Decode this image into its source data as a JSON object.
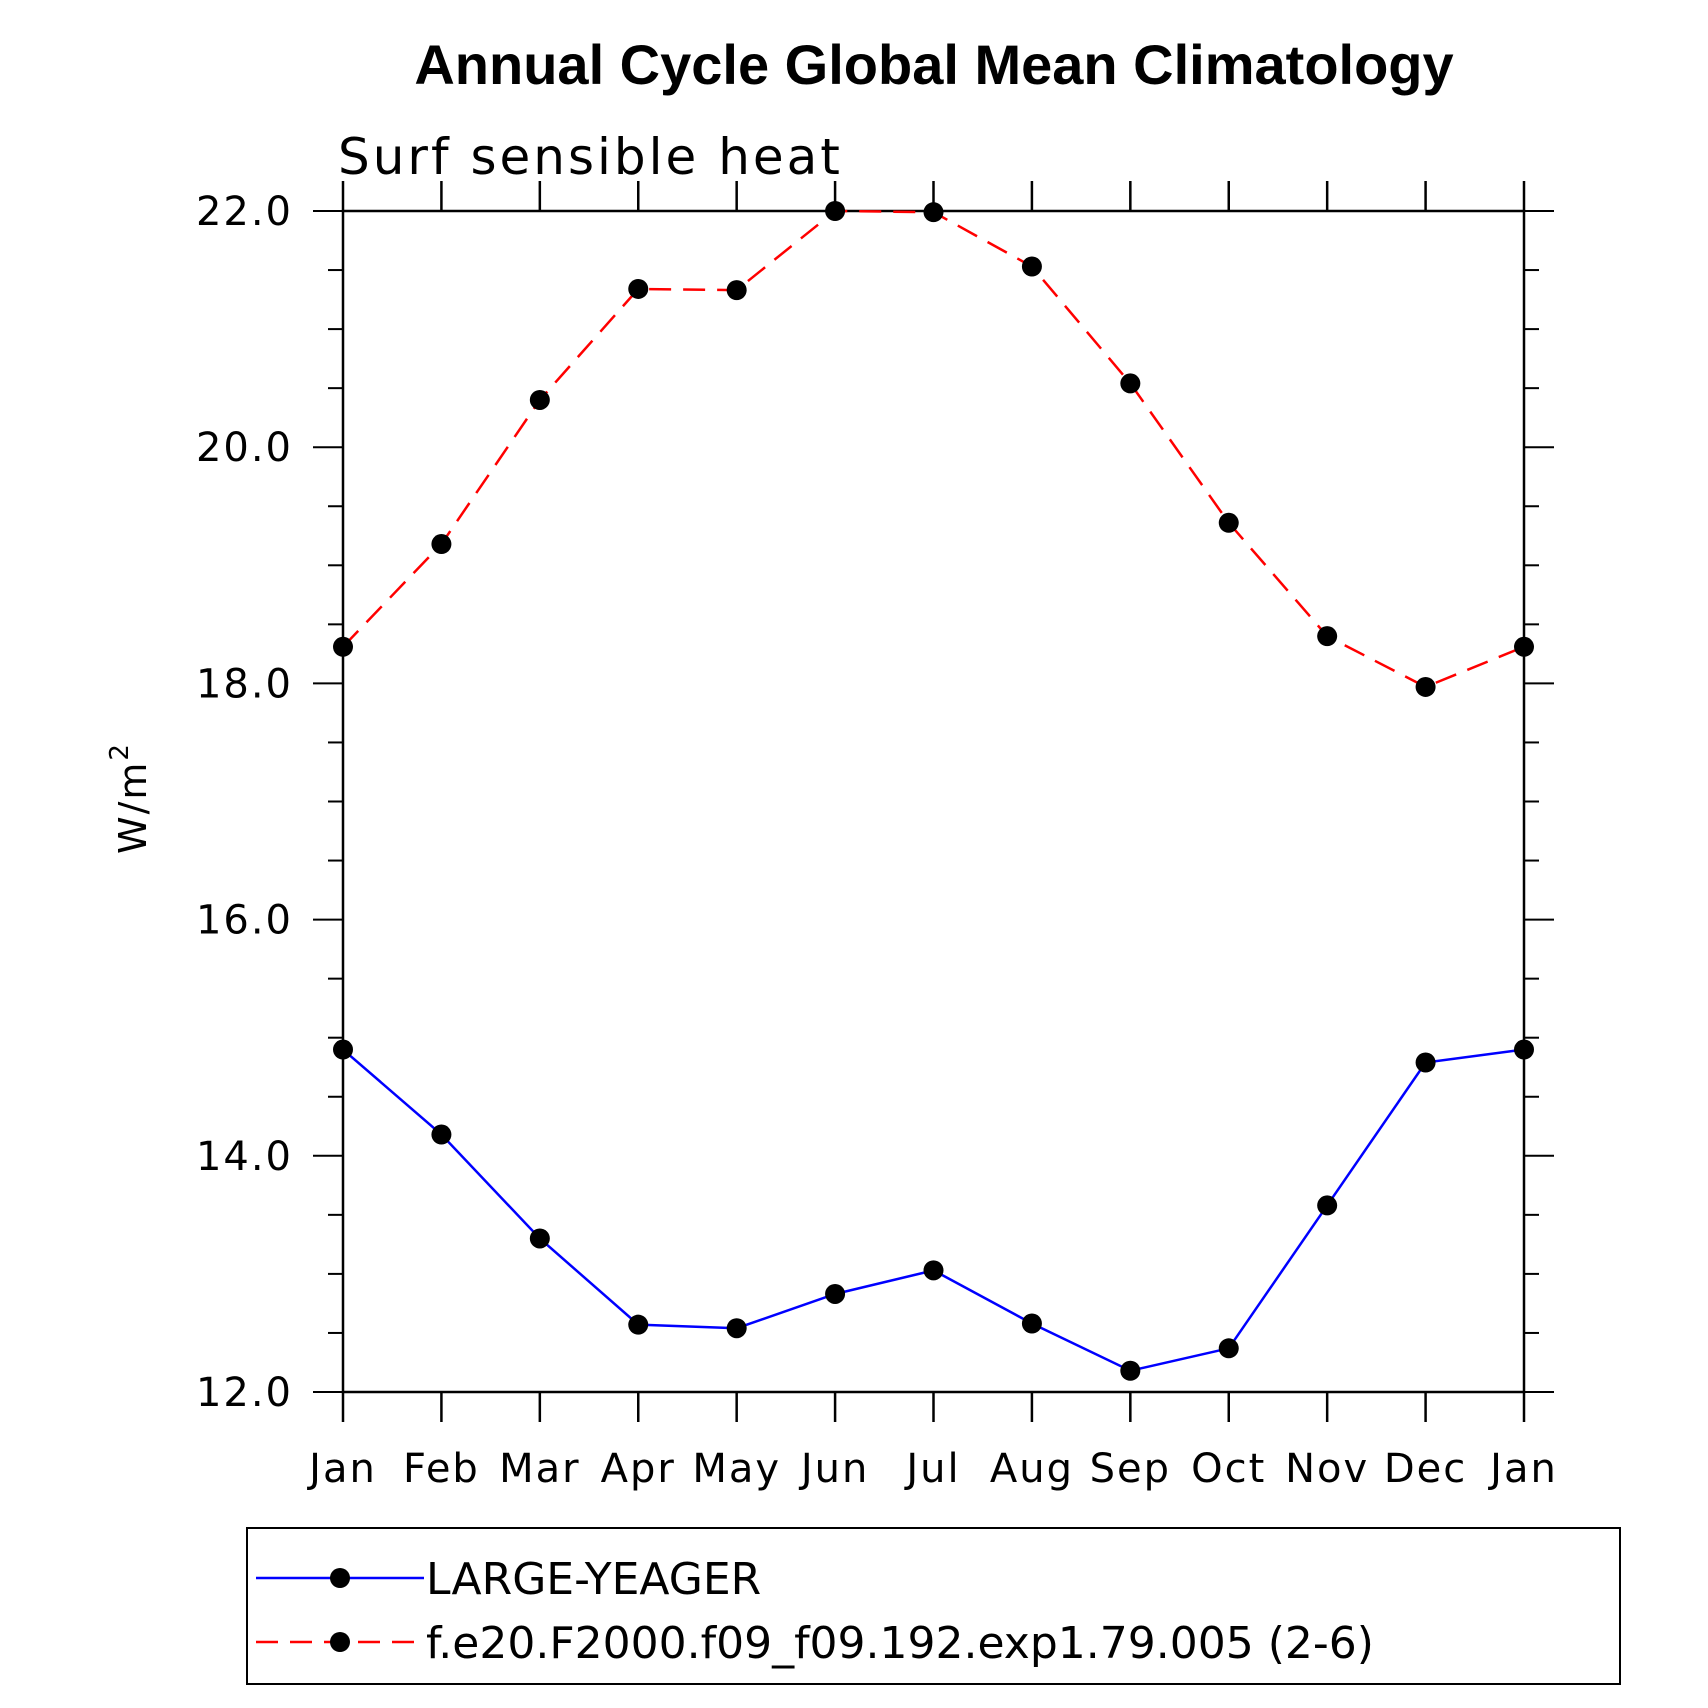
{
  "chart_data": {
    "type": "line",
    "title": "Annual Cycle Global Mean Climatology",
    "subtitle": "Surf sensible heat",
    "ylabel": "W/m",
    "ylabel_superscript": "2",
    "categories": [
      "Jan",
      "Feb",
      "Mar",
      "Apr",
      "May",
      "Jun",
      "Jul",
      "Aug",
      "Sep",
      "Oct",
      "Nov",
      "Dec",
      "Jan"
    ],
    "ylim": [
      12.0,
      22.0
    ],
    "yticks": [
      "12.0",
      "14.0",
      "16.0",
      "18.0",
      "20.0",
      "22.0"
    ],
    "grid": false,
    "legend_position": "bottom",
    "series": [
      {
        "name": "LARGE-YEAGER",
        "color": "#0000ff",
        "line_style": "solid",
        "values": [
          14.9,
          14.18,
          13.3,
          12.57,
          12.54,
          12.83,
          13.03,
          12.58,
          12.18,
          12.37,
          13.58,
          14.79,
          14.9
        ]
      },
      {
        "name": "f.e20.F2000.f09_f09.192.exp1.79.005 (2-6)",
        "color": "#ff0000",
        "line_style": "dashed",
        "values": [
          18.31,
          19.18,
          20.4,
          21.34,
          21.33,
          22.0,
          21.99,
          21.53,
          20.54,
          19.36,
          18.4,
          17.97,
          18.31
        ]
      }
    ]
  }
}
